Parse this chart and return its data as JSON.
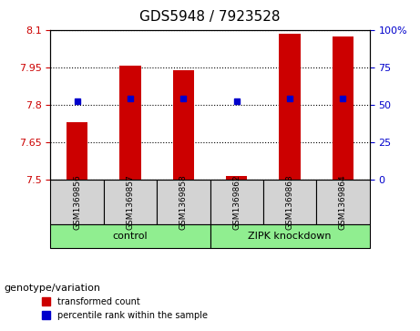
{
  "title": "GDS5948 / 7923528",
  "samples": [
    "GSM1369856",
    "GSM1369857",
    "GSM1369858",
    "GSM1369862",
    "GSM1369863",
    "GSM1369864"
  ],
  "red_values": [
    7.73,
    7.955,
    7.94,
    7.515,
    8.085,
    8.075
  ],
  "blue_values": [
    7.815,
    7.825,
    7.825,
    7.815,
    7.825,
    7.825
  ],
  "ymin": 7.5,
  "ymax": 8.1,
  "y_ticks_left": [
    7.5,
    7.65,
    7.8,
    7.95,
    8.1
  ],
  "y_ticks_right": [
    0,
    25,
    50,
    75,
    100
  ],
  "groups": [
    {
      "label": "control",
      "indices": [
        0,
        1,
        2
      ],
      "color": "#90EE90"
    },
    {
      "label": "ZIPK knockdown",
      "indices": [
        3,
        4,
        5
      ],
      "color": "#90EE90"
    }
  ],
  "group_label_prefix": "genotype/variation",
  "legend_red": "transformed count",
  "legend_blue": "percentile rank within the sample",
  "bar_color": "#CC0000",
  "dot_color": "#0000CC",
  "bg_color": "#D3D3D3",
  "plot_bg": "#FFFFFF",
  "bar_width": 0.4,
  "base": 7.5
}
